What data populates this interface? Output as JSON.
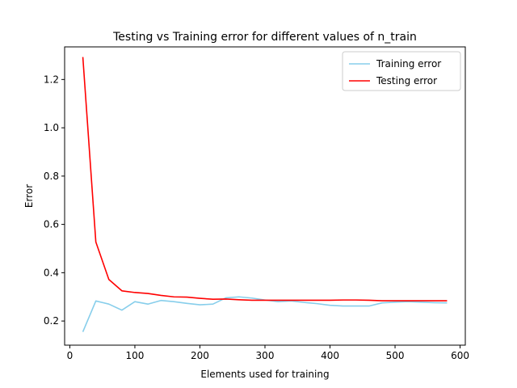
{
  "chart_data": {
    "type": "line",
    "title": "Testing vs Training error for different values of n_train",
    "xlabel": "Elements used for training",
    "ylabel": "Error",
    "xlim": [
      -8,
      608
    ],
    "ylim": [
      0.1,
      1.335
    ],
    "xticks": [
      0,
      100,
      200,
      300,
      400,
      500,
      600
    ],
    "yticks": [
      0.2,
      0.4,
      0.6,
      0.8,
      1.0,
      1.2
    ],
    "ytick_labels": [
      "0.2",
      "0.4",
      "0.6",
      "0.8",
      "1.0",
      "1.2"
    ],
    "grid": false,
    "legend_position": "top-right",
    "x": [
      20,
      40,
      60,
      80,
      100,
      120,
      140,
      160,
      180,
      200,
      220,
      240,
      260,
      280,
      300,
      320,
      340,
      360,
      380,
      400,
      420,
      440,
      460,
      480,
      500,
      520,
      540,
      560,
      580
    ],
    "series": [
      {
        "name": "Training error",
        "color": "#87ceeb",
        "values": [
          0.155,
          0.283,
          0.27,
          0.245,
          0.28,
          0.27,
          0.285,
          0.28,
          0.273,
          0.267,
          0.27,
          0.296,
          0.3,
          0.295,
          0.287,
          0.28,
          0.283,
          0.277,
          0.272,
          0.265,
          0.262,
          0.262,
          0.262,
          0.275,
          0.278,
          0.28,
          0.278,
          0.276,
          0.275
        ]
      },
      {
        "name": "Testing error",
        "color": "#ff0000",
        "values": [
          1.293,
          0.527,
          0.372,
          0.325,
          0.318,
          0.314,
          0.306,
          0.3,
          0.299,
          0.294,
          0.29,
          0.291,
          0.288,
          0.286,
          0.286,
          0.286,
          0.286,
          0.286,
          0.286,
          0.286,
          0.287,
          0.287,
          0.286,
          0.284,
          0.284,
          0.284,
          0.284,
          0.284,
          0.284
        ]
      }
    ]
  }
}
